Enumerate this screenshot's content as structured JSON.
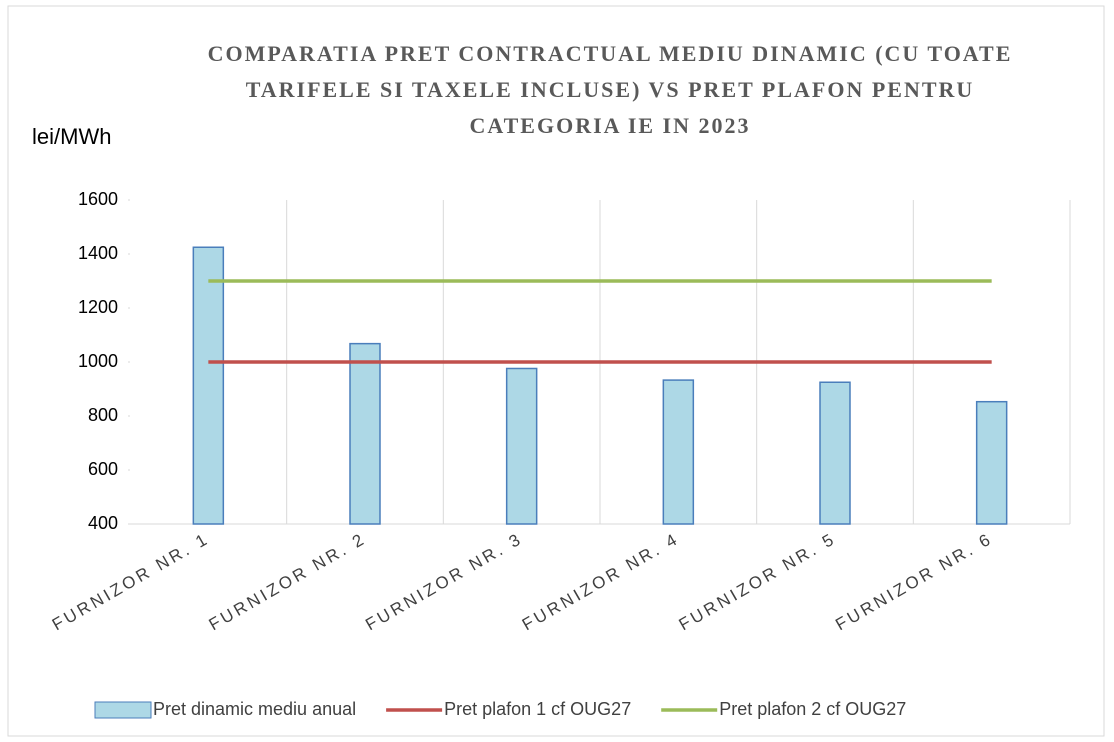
{
  "chart_data": {
    "type": "bar",
    "title": "COMPARATIA PRET CONTRACTUAL MEDIU DINAMIC (CU TOATE TARIFELE SI TAXELE INCLUSE) VS PRET PLAFON PENTRU CATEGORIA IE IN 2023",
    "y_label": "lei/MWh",
    "categories": [
      "FURNIZOR NR. 1",
      "FURNIZOR NR. 2",
      "FURNIZOR NR. 3",
      "FURNIZOR NR. 4",
      "FURNIZOR NR. 5",
      "FURNIZOR NR. 6"
    ],
    "series": [
      {
        "name": "Pret dinamic mediu anual",
        "type": "bar",
        "color": "#add8e6",
        "values": [
          1425,
          1068,
          976,
          933,
          925,
          853
        ]
      },
      {
        "name": "Pret plafon 1 cf OUG27",
        "type": "line",
        "color": "#c0504d",
        "values": [
          1000,
          1000,
          1000,
          1000,
          1000,
          1000
        ]
      },
      {
        "name": "Pret plafon 2 cf OUG27",
        "type": "line",
        "color": "#9bbb59",
        "values": [
          1300,
          1300,
          1300,
          1300,
          1300,
          1300
        ]
      }
    ],
    "ylim": [
      400,
      1600
    ],
    "yticks": [
      400,
      600,
      800,
      1000,
      1200,
      1400,
      1600
    ],
    "grid": "x",
    "legend": "bottom"
  }
}
